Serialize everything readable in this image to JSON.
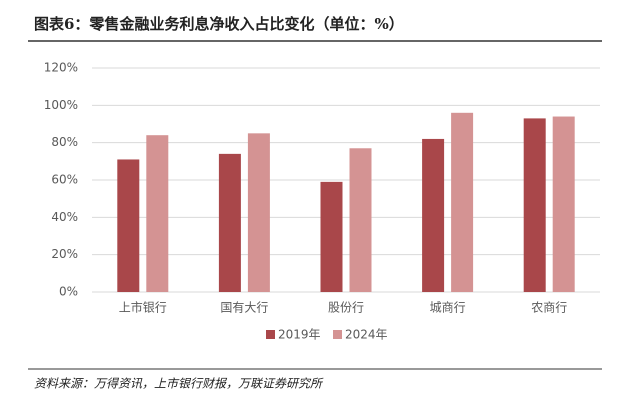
{
  "chart_data": {
    "type": "bar",
    "title": "图表6：零售金融业务利息净收入占比变化（单位：%）",
    "source": "资料来源：万得资讯，上市银行财报，万联证券研究所",
    "categories": [
      "上市银行",
      "国有大行",
      "股份行",
      "城商行",
      "农商行"
    ],
    "series": [
      {
        "name": "2019年",
        "color": "#a9474a",
        "values": [
          71,
          74,
          59,
          82,
          93
        ]
      },
      {
        "name": "2024年",
        "color": "#d49393",
        "values": [
          84,
          85,
          77,
          96,
          94
        ]
      }
    ],
    "ylim": [
      0,
      120
    ],
    "yticks": [
      {
        "value": 0,
        "label": "0%"
      },
      {
        "value": 20,
        "label": "20%"
      },
      {
        "value": 40,
        "label": "40%"
      },
      {
        "value": 60,
        "label": "60%"
      },
      {
        "value": 80,
        "label": "80%"
      },
      {
        "value": 100,
        "label": "100%"
      },
      {
        "value": 120,
        "label": "120%"
      }
    ],
    "grid": true
  }
}
